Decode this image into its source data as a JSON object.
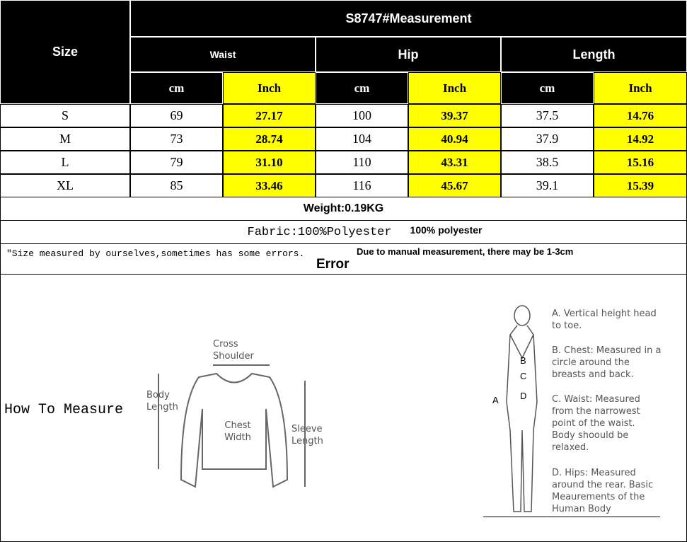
{
  "table": {
    "title": "S8747#Measurement",
    "size_label": "Size",
    "groups": [
      "Waist",
      "Hip",
      "Length"
    ],
    "units": [
      "cm",
      "Inch",
      "cm",
      "Inch",
      "cm",
      "Inch"
    ],
    "rows": [
      {
        "size": "S",
        "values": [
          "69",
          "27.17",
          "100",
          "39.37",
          "37.5",
          "14.76"
        ]
      },
      {
        "size": "M",
        "values": [
          "73",
          "28.74",
          "104",
          "40.94",
          "37.9",
          "14.92"
        ]
      },
      {
        "size": "L",
        "values": [
          "79",
          "31.10",
          "110",
          "43.31",
          "38.5",
          "15.16"
        ]
      },
      {
        "size": "XL",
        "values": [
          "85",
          "33.46",
          "116",
          "45.67",
          "39.1",
          "15.39"
        ]
      }
    ],
    "highlight_color": "#ffff00"
  },
  "weight": "Weight:0.19KG",
  "fabric": "Fabric:100%Polyester",
  "fabric_note": "100% polyester",
  "note": "\"Size measured by ourselves,sometimes has some errors.",
  "note_translation": "Due to manual measurement, there may be 1-3cm",
  "note_error": "Error",
  "how_to": {
    "title": "How To Measure",
    "sweater_labels": {
      "cross_shoulder": "Cross Shoulder",
      "body_length": "Body Length",
      "chest_width": "Chest Width",
      "sleeve_length": "Sleeve Length"
    },
    "body_letters": [
      "A",
      "B",
      "C",
      "D"
    ],
    "legend": [
      "A. Vertical height head to toe.",
      "B. Chest: Measured in a circle around the breasts and back.",
      "C. Waist: Measured from the narrowest point of the waist. Body shoould be relaxed.",
      "D. Hips: Measured around the rear. Basic Meaurements of the Human Body"
    ]
  }
}
